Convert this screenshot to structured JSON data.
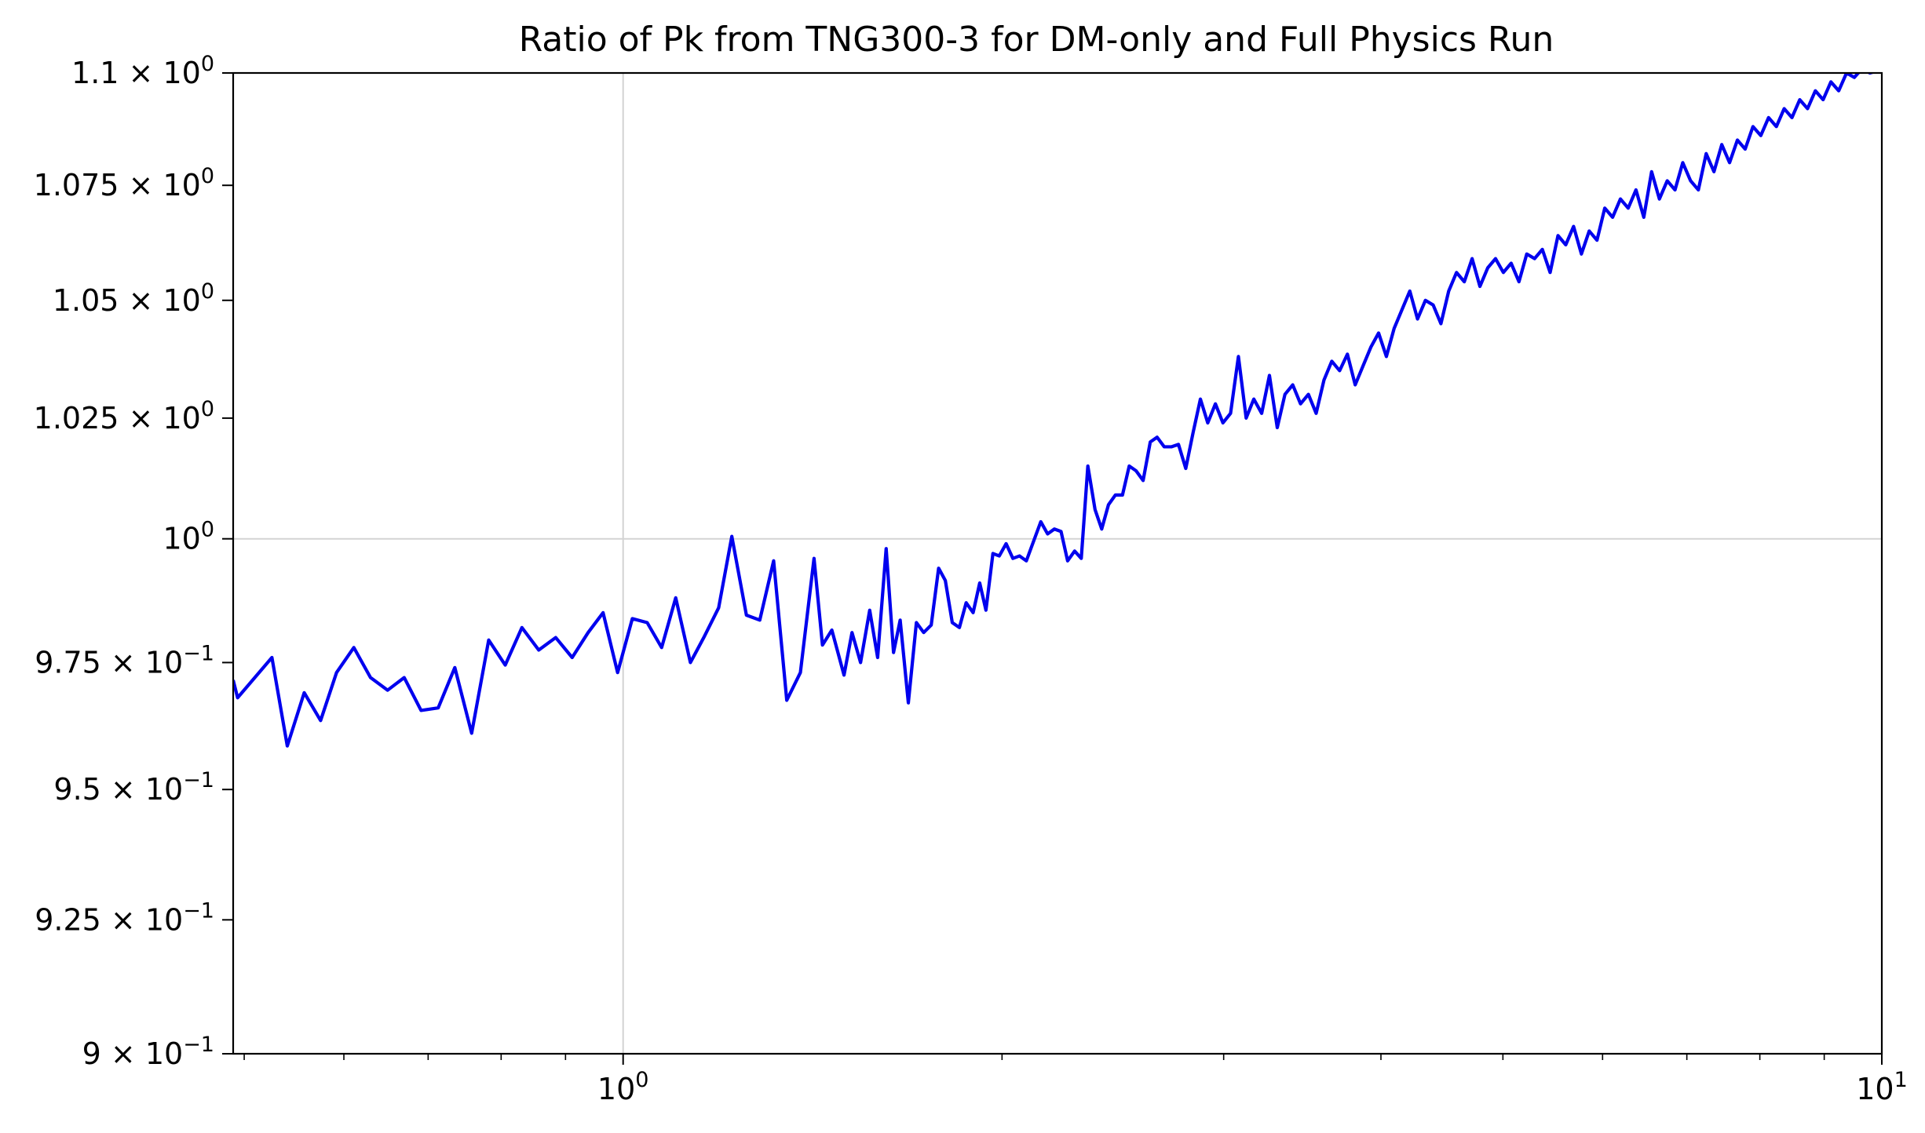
{
  "chart_data": {
    "type": "line",
    "title": "Ratio of Pk from TNG300-3 for DM-only and Full Physics Run",
    "xlabel": "",
    "ylabel": "",
    "xscale": "log",
    "yscale": "log",
    "xlim": [
      0.49,
      10.0
    ],
    "ylim": [
      0.9,
      1.1
    ],
    "grid": true,
    "line_color": "#0000ee",
    "x_ticks": [
      {
        "value": 1.0,
        "mantissa": "10",
        "exponent": "0"
      },
      {
        "value": 10.0,
        "mantissa": "10",
        "exponent": "1"
      }
    ],
    "y_ticks": [
      {
        "value": 0.9,
        "mantissa": "9 × 10",
        "exponent": "−1"
      },
      {
        "value": 0.925,
        "mantissa": "9.25 × 10",
        "exponent": "−1"
      },
      {
        "value": 0.95,
        "mantissa": "9.5 × 10",
        "exponent": "−1"
      },
      {
        "value": 0.975,
        "mantissa": "9.75 × 10",
        "exponent": "−1"
      },
      {
        "value": 1.0,
        "mantissa": "10",
        "exponent": "0"
      },
      {
        "value": 1.025,
        "mantissa": "1.025 × 10",
        "exponent": "0"
      },
      {
        "value": 1.05,
        "mantissa": "1.05 × 10",
        "exponent": "0"
      },
      {
        "value": 1.075,
        "mantissa": "1.075 × 10",
        "exponent": "0"
      },
      {
        "value": 1.1,
        "mantissa": "1.1 × 10",
        "exponent": "0"
      }
    ],
    "series": [
      {
        "name": "",
        "x": [
          0.49,
          0.494,
          0.526,
          0.541,
          0.558,
          0.575,
          0.592,
          0.611,
          0.63,
          0.65,
          0.67,
          0.691,
          0.713,
          0.735,
          0.758,
          0.782,
          0.806,
          0.831,
          0.857,
          0.884,
          0.911,
          0.938,
          0.964,
          0.99,
          1.017,
          1.045,
          1.073,
          1.101,
          1.131,
          1.159,
          1.191,
          1.22,
          1.253,
          1.284,
          1.317,
          1.349,
          1.383,
          1.418,
          1.44,
          1.465,
          1.498,
          1.52,
          1.544,
          1.57,
          1.593,
          1.618,
          1.64,
          1.66,
          1.685,
          1.71,
          1.733,
          1.757,
          1.781,
          1.803,
          1.826,
          1.85,
          1.873,
          1.897,
          1.92,
          1.942,
          1.967,
          1.99,
          2.015,
          2.04,
          2.065,
          2.091,
          2.147,
          2.174,
          2.201,
          2.228,
          2.255,
          2.284,
          2.312,
          2.34,
          2.371,
          2.4,
          2.43,
          2.461,
          2.493,
          2.524,
          2.556,
          2.589,
          2.623,
          2.656,
          2.691,
          2.726,
          2.762,
          2.799,
          2.837,
          2.875,
          2.914,
          2.955,
          2.996,
          3.038,
          3.082,
          3.126,
          3.17,
          3.216,
          3.262,
          3.309,
          3.356,
          3.404,
          3.453,
          3.503,
          3.553,
          3.604,
          3.656,
          3.709,
          3.762,
          3.816,
          3.871,
          3.927,
          3.983,
          4.04,
          4.098,
          4.157,
          4.217,
          4.277,
          4.339,
          4.401,
          4.464,
          4.528,
          4.593,
          4.659,
          4.726,
          4.794,
          4.863,
          4.933,
          5.004,
          5.076,
          5.149,
          5.223,
          5.298,
          5.374,
          5.451,
          5.53,
          5.609,
          5.69,
          5.772,
          5.855,
          5.939,
          6.024,
          6.111,
          6.199,
          6.288,
          6.378,
          6.47,
          6.563,
          6.657,
          6.753,
          6.85,
          6.948,
          7.048,
          7.149,
          7.252,
          7.356,
          7.462,
          7.569,
          7.678,
          7.788,
          7.9,
          8.014,
          8.129,
          8.246,
          8.364,
          8.484,
          8.606,
          8.73,
          8.855,
          8.982,
          9.111,
          9.242,
          9.375,
          9.51,
          9.647,
          9.785,
          9.926,
          10.0
        ],
        "y": [
          0.9715,
          0.968,
          0.976,
          0.9585,
          0.969,
          0.9635,
          0.973,
          0.978,
          0.972,
          0.9695,
          0.972,
          0.9655,
          0.966,
          0.974,
          0.961,
          0.9795,
          0.9745,
          0.982,
          0.9775,
          0.98,
          0.976,
          0.981,
          0.985,
          0.973,
          0.9838,
          0.983,
          0.978,
          0.988,
          0.975,
          0.98,
          0.986,
          1.0005,
          0.9845,
          0.9835,
          0.9955,
          0.9675,
          0.973,
          0.996,
          0.9785,
          0.9815,
          0.9725,
          0.981,
          0.975,
          0.9855,
          0.976,
          0.998,
          0.977,
          0.9835,
          0.967,
          0.983,
          0.981,
          0.9825,
          0.994,
          0.9915,
          0.983,
          0.982,
          0.987,
          0.985,
          0.991,
          0.9855,
          0.997,
          0.9965,
          0.999,
          0.996,
          0.9965,
          0.9955,
          1.0035,
          1.001,
          1.002,
          1.0015,
          0.9955,
          0.9975,
          0.996,
          1.015,
          1.006,
          1.002,
          1.007,
          1.009,
          1.009,
          1.015,
          1.014,
          1.012,
          1.02,
          1.021,
          1.019,
          1.019,
          1.0195,
          1.0145,
          1.022,
          1.029,
          1.024,
          1.028,
          1.024,
          1.026,
          1.038,
          1.025,
          1.029,
          1.026,
          1.034,
          1.023,
          1.03,
          1.032,
          1.028,
          1.03,
          1.026,
          1.033,
          1.037,
          1.035,
          1.0385,
          1.032,
          1.036,
          1.04,
          1.043,
          1.038,
          1.044,
          1.048,
          1.052,
          1.046,
          1.05,
          1.049,
          1.045,
          1.052,
          1.056,
          1.054,
          1.059,
          1.053,
          1.057,
          1.059,
          1.056,
          1.058,
          1.054,
          1.06,
          1.059,
          1.061,
          1.056,
          1.064,
          1.062,
          1.066,
          1.06,
          1.065,
          1.063,
          1.07,
          1.068,
          1.072,
          1.07,
          1.074,
          1.068,
          1.078,
          1.072,
          1.076,
          1.074,
          1.08,
          1.076,
          1.074,
          1.082,
          1.078,
          1.084,
          1.08,
          1.085,
          1.083,
          1.088,
          1.086,
          1.09,
          1.088,
          1.092,
          1.09,
          1.094,
          1.092,
          1.096,
          1.094,
          1.098,
          1.096,
          1.1,
          1.099,
          1.101,
          1.1,
          1.1005,
          1.101
        ]
      }
    ]
  }
}
